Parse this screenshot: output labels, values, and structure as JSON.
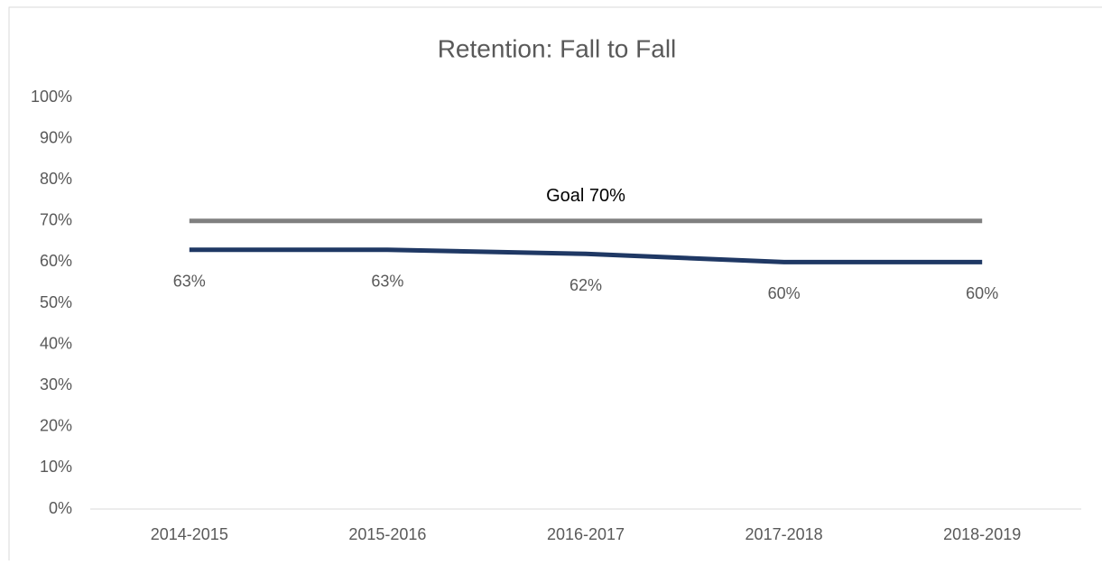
{
  "chart_data": {
    "type": "line",
    "title": "Retention: Fall to Fall",
    "categories": [
      "2014-2015",
      "2015-2016",
      "2016-2017",
      "2017-2018",
      "2018-2019"
    ],
    "series": [
      {
        "color": "#1f3864",
        "values": [
          63,
          63,
          62,
          60,
          60
        ],
        "value_labels": [
          "63%",
          "63%",
          "62%",
          "60%",
          "60%"
        ]
      },
      {
        "color": "#808080",
        "values": [
          70,
          70,
          70,
          70,
          70
        ]
      }
    ],
    "annotation": "Goal 70%",
    "ylim": [
      0,
      100
    ],
    "yticks": [
      {
        "value": 0,
        "label": "0%"
      },
      {
        "value": 10,
        "label": "10%"
      },
      {
        "value": 20,
        "label": "20%"
      },
      {
        "value": 30,
        "label": "30%"
      },
      {
        "value": 40,
        "label": "40%"
      },
      {
        "value": 50,
        "label": "50%"
      },
      {
        "value": 60,
        "label": "60%"
      },
      {
        "value": 70,
        "label": "70%"
      },
      {
        "value": 80,
        "label": "80%"
      },
      {
        "value": 90,
        "label": "90%"
      },
      {
        "value": 100,
        "label": "100%"
      }
    ],
    "grid": false
  }
}
